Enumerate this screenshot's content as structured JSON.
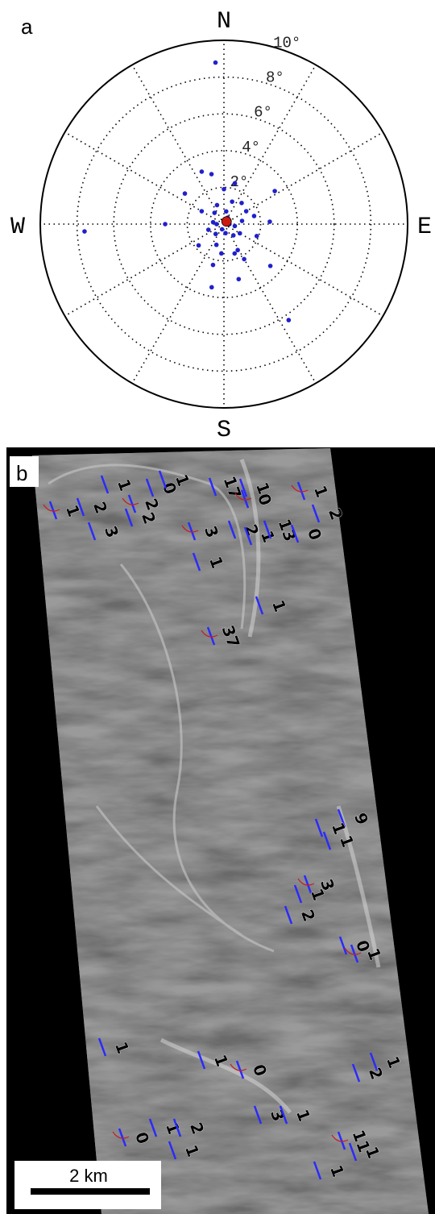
{
  "chart_data": {
    "type": "polar-scatter",
    "label": "a",
    "directions": {
      "north": "N",
      "south": "S",
      "east": "E",
      "west": "W"
    },
    "rlim": [
      0,
      10
    ],
    "rticks": [
      {
        "value": 2,
        "label": "2°"
      },
      {
        "value": 4,
        "label": "4°"
      },
      {
        "value": 6,
        "label": "6°"
      },
      {
        "value": 8,
        "label": "8°"
      },
      {
        "value": 10,
        "label": "10°"
      }
    ],
    "grid": true,
    "series": [
      {
        "color": "#2020cc",
        "theta": [
          357,
          267,
          146,
          132,
          191,
          165,
          57,
          337,
          346,
          308,
          270,
          87,
          160,
          152,
          185,
          120,
          60,
          200,
          300,
          20,
          40,
          80,
          100,
          140,
          220,
          250,
          280,
          320,
          340,
          10,
          30,
          170,
          200,
          90,
          270,
          0,
          110,
          230,
          150,
          195,
          75,
          15
        ],
        "r": [
          8.8,
          7.6,
          6.3,
          3.4,
          3.5,
          3.1,
          3.3,
          3.1,
          2.8,
          2.7,
          3.2,
          2.5,
          1.7,
          1.6,
          1.6,
          1.0,
          1.4,
          1.2,
          1.4,
          1.3,
          1.5,
          1.0,
          0.6,
          0.8,
          0.7,
          0.9,
          0.6,
          0.8,
          1.1,
          0.7,
          0.4,
          0.5,
          0.3,
          0.3,
          0.4,
          1.9,
          1.9,
          1.8,
          2.2,
          2.3,
          1.7,
          2.3
        ]
      },
      {
        "color": "#cc1a10",
        "theta": [
          45
        ],
        "r": [
          0.2
        ]
      }
    ]
  },
  "panel_b": {
    "label": "b",
    "scale_bar": "2 km",
    "annotations": [
      "1",
      "2",
      "3",
      "1",
      "2",
      "0",
      "1",
      "2",
      "3",
      "1",
      "17",
      "1",
      "0",
      "2",
      "1",
      "13",
      "1",
      "0",
      "2",
      "1",
      "37",
      "9",
      "1",
      "1",
      "3",
      "1",
      "2",
      "0",
      "1",
      "1",
      "1",
      "1",
      "0",
      "3",
      "2",
      "1",
      "0",
      "1",
      "2",
      "1",
      "11",
      "1",
      "1"
    ]
  }
}
